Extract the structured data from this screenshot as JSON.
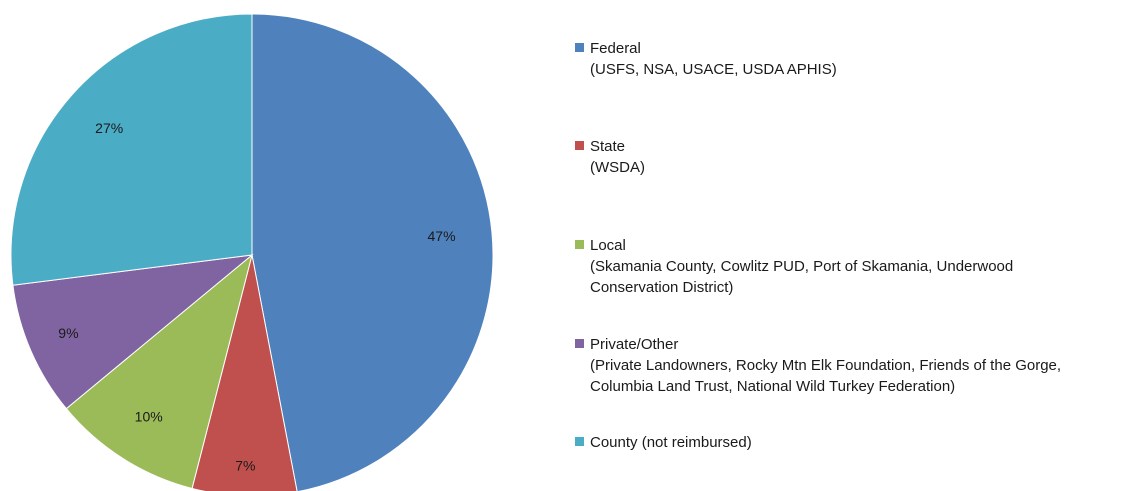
{
  "chart_data": {
    "type": "pie",
    "start_angle_deg": 0,
    "direction": "clockwise",
    "slices": [
      {
        "name": "Federal",
        "detail": "(USFS, NSA, USACE, USDA APHIS)",
        "value": 47,
        "label": "47%",
        "color": "#4F81BD"
      },
      {
        "name": "State",
        "detail": "(WSDA)",
        "value": 7,
        "label": "7%",
        "color": "#C0504D"
      },
      {
        "name": "Local",
        "detail": [
          "(Skamania County, Cowlitz PUD, Port of Skamania, Underwood",
          "Conservation District)"
        ],
        "value": 10,
        "label": "10%",
        "color": "#9BBB59"
      },
      {
        "name": "Private/Other",
        "detail": [
          "(Private Landowners, Rocky Mtn Elk Foundation, Friends of the Gorge,",
          "Columbia Land Trust, National Wild Turkey Federation)"
        ],
        "value": 9,
        "label": "9%",
        "color": "#8064A2"
      },
      {
        "name": "County (not reimbursed)",
        "detail": "",
        "value": 27,
        "label": "27%",
        "color": "#4BACC6"
      }
    ],
    "legend_position": "right"
  }
}
